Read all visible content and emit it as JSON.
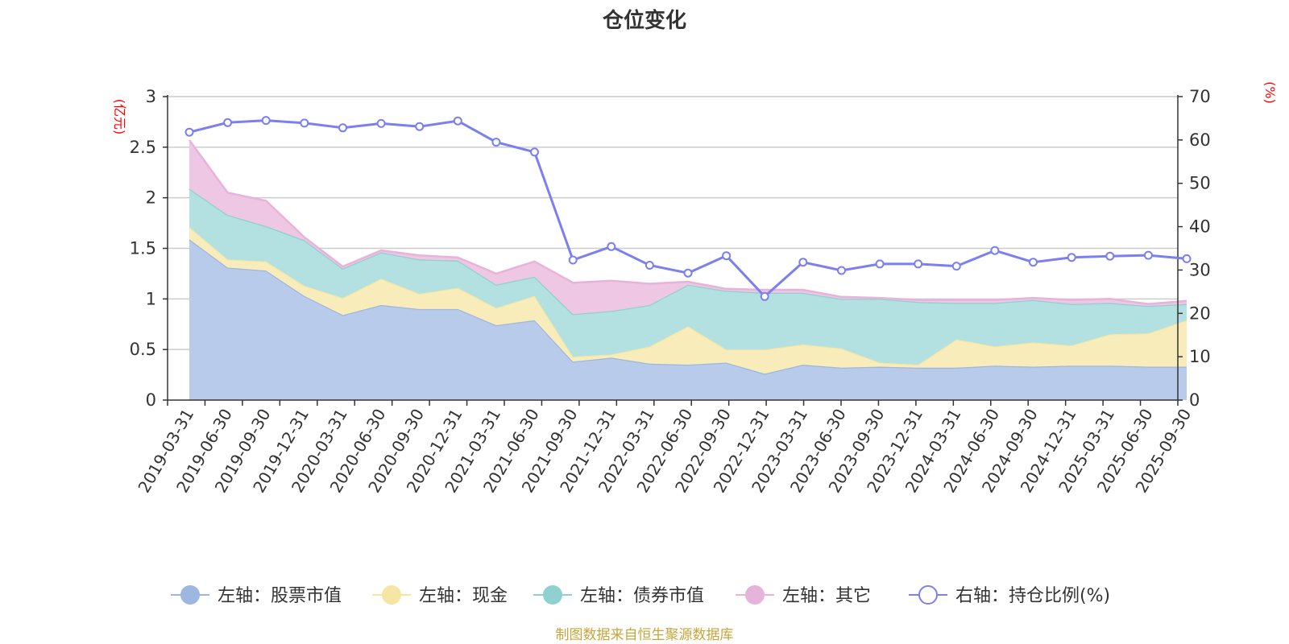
{
  "chart_data": {
    "type": "area",
    "title": "仓位变化",
    "left_unit": "(亿元)",
    "right_unit": "(%)",
    "source": "制图数据来自恒生聚源数据库",
    "left_axis": {
      "min": 0,
      "max": 3,
      "ticks": [
        0,
        0.5,
        1,
        1.5,
        2,
        2.5,
        3
      ],
      "tick_labels": [
        "0",
        "0.5",
        "1",
        "1.5",
        "2",
        "2.5",
        "3"
      ]
    },
    "right_axis": {
      "min": 0,
      "max": 70,
      "ticks": [
        0,
        10,
        20,
        30,
        40,
        50,
        60,
        70
      ],
      "tick_labels": [
        "0",
        "10",
        "20",
        "30",
        "40",
        "50",
        "60",
        "70"
      ]
    },
    "categories": [
      "2019-03-31",
      "2019-06-30",
      "2019-09-30",
      "2019-12-31",
      "2020-03-31",
      "2020-06-30",
      "2020-09-30",
      "2020-12-31",
      "2021-03-31",
      "2021-06-30",
      "2021-09-30",
      "2021-12-31",
      "2022-03-31",
      "2022-06-30",
      "2022-09-30",
      "2022-12-31",
      "2023-03-31",
      "2023-06-30",
      "2023-09-30",
      "2023-12-31",
      "2024-03-31",
      "2024-06-30",
      "2024-09-30",
      "2024-12-31",
      "2025-03-31",
      "2025-06-30",
      "2025-09-30"
    ],
    "stacked_series": [
      {
        "name": "左轴：股票市值",
        "color": "#9db7e0",
        "fill": "#b8cbea",
        "values": [
          1.59,
          1.31,
          1.28,
          1.03,
          0.84,
          0.94,
          0.9,
          0.9,
          0.74,
          0.79,
          0.38,
          0.42,
          0.36,
          0.35,
          0.37,
          0.26,
          0.35,
          0.32,
          0.33,
          0.32,
          0.32,
          0.34,
          0.33,
          0.34,
          0.34,
          0.33,
          0.33
        ]
      },
      {
        "name": "左轴：现金",
        "color": "#f6e6a3",
        "fill": "#f8ecbb",
        "values": [
          0.12,
          0.08,
          0.09,
          0.1,
          0.17,
          0.26,
          0.15,
          0.21,
          0.17,
          0.24,
          0.05,
          0.03,
          0.17,
          0.38,
          0.13,
          0.24,
          0.2,
          0.19,
          0.04,
          0.03,
          0.28,
          0.19,
          0.24,
          0.2,
          0.31,
          0.33,
          0.46
        ]
      },
      {
        "name": "左轴：债券市值",
        "color": "#8fd0d0",
        "fill": "#b3e0e0",
        "values": [
          0.38,
          0.44,
          0.35,
          0.45,
          0.29,
          0.26,
          0.34,
          0.27,
          0.23,
          0.19,
          0.42,
          0.43,
          0.41,
          0.41,
          0.58,
          0.56,
          0.51,
          0.49,
          0.63,
          0.62,
          0.36,
          0.43,
          0.42,
          0.41,
          0.31,
          0.27,
          0.16
        ]
      },
      {
        "name": "左轴：其它",
        "color": "#e7b3da",
        "fill": "#eec7e4",
        "values": [
          0.48,
          0.22,
          0.25,
          0.03,
          0.02,
          0.02,
          0.04,
          0.03,
          0.11,
          0.15,
          0.31,
          0.3,
          0.21,
          0.03,
          0.02,
          0.03,
          0.03,
          0.02,
          0.01,
          0.02,
          0.03,
          0.03,
          0.02,
          0.04,
          0.04,
          0.02,
          0.03
        ]
      }
    ],
    "line_series": {
      "name": "右轴：持仓比例(%)",
      "color": "#7b7ff0",
      "values": [
        61.8,
        64.0,
        64.5,
        63.9,
        62.8,
        63.8,
        63.1,
        64.4,
        59.5,
        57.2,
        32.3,
        35.4,
        31.1,
        29.3,
        33.3,
        23.9,
        31.8,
        29.9,
        31.4,
        31.4,
        30.9,
        34.5,
        31.8,
        32.9,
        33.2,
        33.4,
        32.6
      ]
    }
  }
}
